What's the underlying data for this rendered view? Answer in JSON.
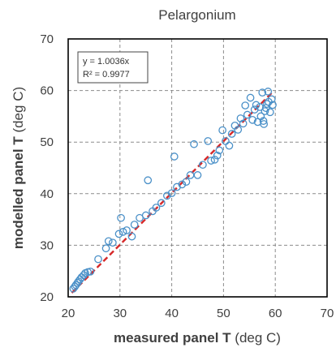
{
  "chart_data": {
    "type": "scatter",
    "title": "Pelargonium",
    "xlabel_bold": "measured panel T",
    "xlabel_rest": " (deg C)",
    "ylabel_bold": "modelled panel T",
    "ylabel_rest": " (deg C)",
    "xlim": [
      20,
      70
    ],
    "ylim": [
      20,
      70
    ],
    "xticks": [
      20,
      30,
      40,
      50,
      60,
      70
    ],
    "yticks": [
      20,
      30,
      40,
      50,
      60,
      70
    ],
    "grid": true,
    "grid_style": "dashed",
    "annotation": {
      "line1": "y = 1.0036x",
      "line2": "R² = 0.9977"
    },
    "trendline": {
      "slope": 1.0036,
      "x_start": 20.7,
      "x_end": 59.5,
      "color": "#d62728",
      "style": "dashed"
    },
    "marker_color": "#4a90c8",
    "series": [
      {
        "points": [
          [
            21.0,
            21.6
          ],
          [
            21.3,
            22.0
          ],
          [
            21.5,
            22.3
          ],
          [
            21.8,
            22.7
          ],
          [
            22.0,
            23.0
          ],
          [
            22.3,
            23.4
          ],
          [
            22.6,
            23.8
          ],
          [
            23.0,
            24.2
          ],
          [
            23.3,
            24.6
          ],
          [
            23.8,
            24.8
          ],
          [
            24.3,
            24.9
          ],
          [
            25.8,
            27.3
          ],
          [
            27.3,
            29.4
          ],
          [
            27.8,
            30.8
          ],
          [
            28.6,
            30.5
          ],
          [
            29.8,
            32.2
          ],
          [
            30.2,
            35.3
          ],
          [
            30.6,
            32.6
          ],
          [
            31.3,
            32.9
          ],
          [
            32.3,
            31.7
          ],
          [
            32.8,
            34.0
          ],
          [
            33.8,
            35.3
          ],
          [
            35.0,
            35.8
          ],
          [
            35.4,
            42.6
          ],
          [
            36.3,
            36.6
          ],
          [
            37.0,
            37.3
          ],
          [
            38.0,
            38.2
          ],
          [
            39.1,
            39.6
          ],
          [
            40.0,
            40.1
          ],
          [
            40.5,
            47.2
          ],
          [
            41.0,
            41.3
          ],
          [
            42.0,
            41.8
          ],
          [
            42.8,
            42.3
          ],
          [
            43.6,
            43.6
          ],
          [
            44.3,
            49.6
          ],
          [
            45.0,
            43.6
          ],
          [
            46.0,
            45.6
          ],
          [
            47.0,
            50.2
          ],
          [
            47.6,
            46.4
          ],
          [
            48.3,
            46.6
          ],
          [
            48.8,
            47.4
          ],
          [
            49.2,
            48.4
          ],
          [
            49.8,
            52.3
          ],
          [
            50.4,
            50.2
          ],
          [
            51.1,
            49.3
          ],
          [
            51.6,
            51.6
          ],
          [
            52.2,
            53.2
          ],
          [
            52.8,
            52.4
          ],
          [
            53.3,
            54.6
          ],
          [
            53.8,
            53.6
          ],
          [
            54.2,
            57.1
          ],
          [
            54.6,
            55.3
          ],
          [
            55.2,
            58.6
          ],
          [
            55.6,
            54.3
          ],
          [
            56.0,
            56.3
          ],
          [
            56.3,
            57.2
          ],
          [
            56.6,
            53.9
          ],
          [
            57.0,
            56.8
          ],
          [
            57.2,
            55.0
          ],
          [
            57.5,
            59.6
          ],
          [
            57.7,
            54.1
          ],
          [
            58.0,
            56.0
          ],
          [
            58.2,
            56.6
          ],
          [
            58.4,
            57.4
          ],
          [
            58.7,
            57.8
          ],
          [
            59.0,
            55.8
          ],
          [
            59.3,
            58.3
          ],
          [
            59.5,
            57.2
          ],
          [
            58.6,
            59.8
          ],
          [
            57.8,
            53.5
          ]
        ]
      }
    ]
  }
}
